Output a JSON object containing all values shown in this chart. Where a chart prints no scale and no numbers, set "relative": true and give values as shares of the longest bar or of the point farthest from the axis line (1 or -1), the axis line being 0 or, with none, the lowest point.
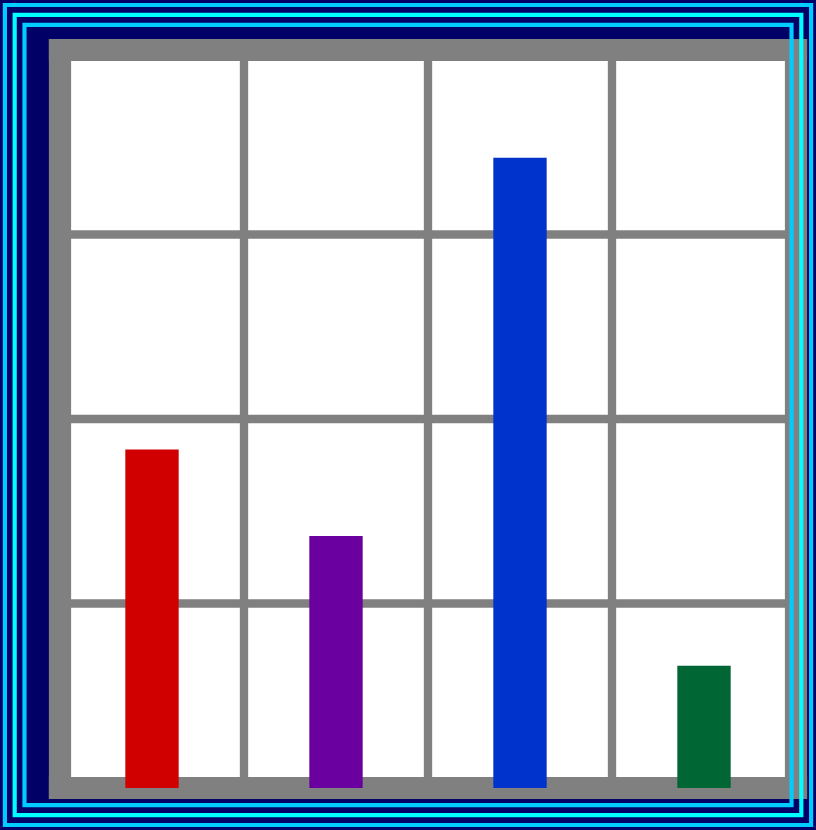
{
  "chart_data": {
    "type": "bar",
    "relative": true,
    "categories": [
      null,
      null,
      null,
      null
    ],
    "values": [
      0.537,
      0.4,
      1,
      0.194
    ],
    "colors": [
      "#d10000",
      "#6a00a0",
      "#0033cc",
      "#006633"
    ],
    "grid": true
  }
}
